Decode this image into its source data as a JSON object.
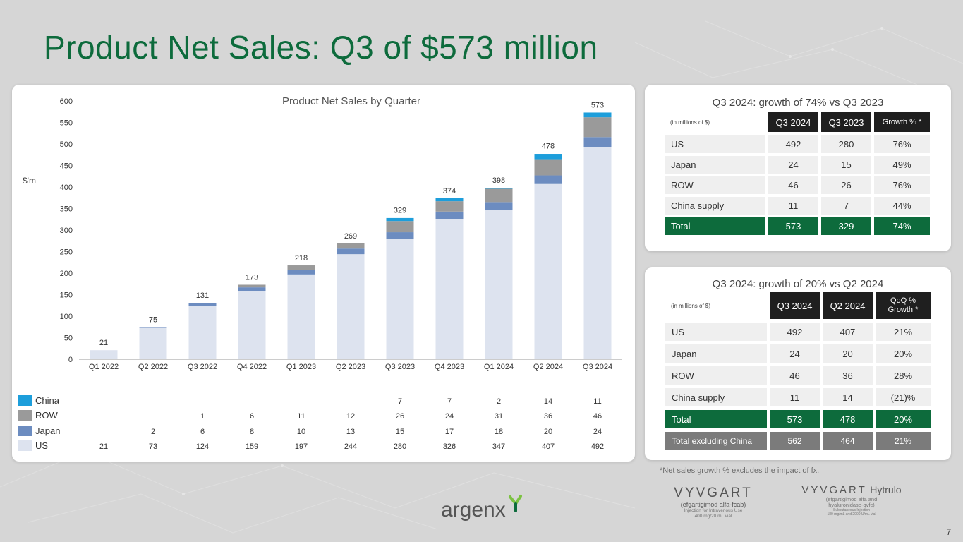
{
  "title": "Product Net Sales: Q3 of $573 million",
  "colors": {
    "title_green": "#0d6b3c",
    "us": "#dde3ef",
    "japan": "#6c8cc0",
    "row": "#9a9a9a",
    "china": "#1d9edb",
    "header_dark": "#1f1f1f",
    "total_green": "#0d6b3c",
    "excl_grey": "#7b7b7b"
  },
  "chart_data": {
    "type": "bar",
    "stacked": true,
    "title": "Product Net Sales by Quarter",
    "ylabel": "$'m",
    "xlabel": "",
    "ylim": [
      0,
      600
    ],
    "yticks": [
      0,
      50,
      100,
      150,
      200,
      250,
      300,
      350,
      400,
      450,
      500,
      550,
      600
    ],
    "categories": [
      "Q1 2022",
      "Q2 2022",
      "Q3 2022",
      "Q4 2022",
      "Q1 2023",
      "Q2 2023",
      "Q3 2023",
      "Q4 2023",
      "Q1 2024",
      "Q2 2024",
      "Q3 2024"
    ],
    "totals": [
      21,
      75,
      131,
      173,
      218,
      269,
      329,
      374,
      398,
      478,
      573
    ],
    "series": [
      {
        "name": "US",
        "color": "#dde3ef",
        "values": [
          21,
          73,
          124,
          159,
          197,
          244,
          280,
          326,
          347,
          407,
          492
        ]
      },
      {
        "name": "Japan",
        "color": "#6c8cc0",
        "values": [
          null,
          2,
          6,
          8,
          10,
          13,
          15,
          17,
          18,
          20,
          24
        ]
      },
      {
        "name": "ROW",
        "color": "#9a9a9a",
        "values": [
          null,
          null,
          1,
          6,
          11,
          12,
          26,
          24,
          31,
          36,
          46
        ]
      },
      {
        "name": "China",
        "color": "#1d9edb",
        "values": [
          null,
          null,
          null,
          null,
          null,
          null,
          7,
          7,
          2,
          14,
          11
        ]
      }
    ],
    "legend_order": [
      "China",
      "ROW",
      "Japan",
      "US"
    ]
  },
  "yoy_table": {
    "title": "Q3 2024: growth of 74% vs Q3 2023",
    "note": "(in millions of $)",
    "headers": [
      "Q3 2024",
      "Q3 2023",
      "Growth % *"
    ],
    "rows": [
      {
        "label": "US",
        "a": "492",
        "b": "280",
        "c": "76%"
      },
      {
        "label": "Japan",
        "a": "24",
        "b": "15",
        "c": "49%"
      },
      {
        "label": "ROW",
        "a": "46",
        "b": "26",
        "c": "76%"
      },
      {
        "label": "China supply",
        "a": "11",
        "b": "7",
        "c": "44%"
      },
      {
        "label": "Total",
        "a": "573",
        "b": "329",
        "c": "74%"
      }
    ]
  },
  "qoq_table": {
    "title": "Q3 2024: growth of 20% vs Q2 2024",
    "note": "(in millions of $)",
    "headers": [
      "Q3 2024",
      "Q2 2024",
      "QoQ %",
      "Growth *"
    ],
    "rows": [
      {
        "label": "US",
        "a": "492",
        "b": "407",
        "c": "21%"
      },
      {
        "label": "Japan",
        "a": "24",
        "b": "20",
        "c": "20%"
      },
      {
        "label": "ROW",
        "a": "46",
        "b": "36",
        "c": "28%"
      },
      {
        "label": "China supply",
        "a": "11",
        "b": "14",
        "c": "(21)%"
      },
      {
        "label": "Total",
        "a": "573",
        "b": "478",
        "c": "20%"
      },
      {
        "label": "Total excluding China",
        "a": "562",
        "b": "464",
        "c": "21%"
      }
    ]
  },
  "footnote": "*Net sales growth % excludes the impact of fx.",
  "page_number": "7",
  "logos": {
    "argenx": "argenx",
    "vyvgart": "VYVGART",
    "vyvgart_generic": "(efgartigimod alfa-fcab)",
    "vyvgart_detail_1": "Injection for Intravenous Use",
    "vyvgart_detail_2": "400 mg/20 mL vial",
    "hytrulo_name": "VYVGART",
    "hytrulo_suffix": "Hytrulo",
    "hytrulo_generic_1": "(efgartigimod alfa and",
    "hytrulo_generic_2": "hyaluronidase-qvfc)",
    "hytrulo_detail_1": "Subcutaneous Injection",
    "hytrulo_detail_2": "180 mg/mL and 2000 U/mL vial"
  }
}
